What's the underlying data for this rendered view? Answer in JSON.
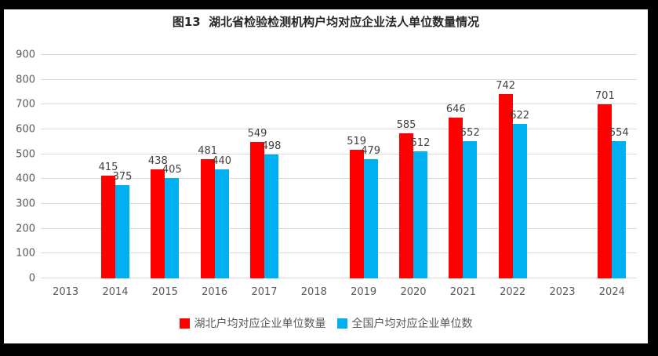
{
  "title": "图13  湖北省检验检测机构户均对应企业法人单位数量情况",
  "chart_data": {
    "type": "bar",
    "title": "图13  湖北省检验检测机构户均对应企业法人单位数量情况",
    "categories": [
      "2013",
      "2014",
      "2015",
      "2016",
      "2017",
      "2018",
      "2019",
      "2020",
      "2021",
      "2022",
      "2023",
      "2024"
    ],
    "series": [
      {
        "name": "湖北户均对应企业单位数量",
        "color": "#FF0000",
        "values": [
          null,
          415,
          438,
          481,
          549,
          null,
          519,
          585,
          646,
          742,
          null,
          701
        ]
      },
      {
        "name": "全国户均对应企业单位数",
        "color": "#00B0F0",
        "values": [
          null,
          375,
          405,
          440,
          498,
          null,
          479,
          512,
          552,
          622,
          null,
          554
        ]
      }
    ],
    "xlabel": "",
    "ylabel": "",
    "ylim": [
      0,
      900
    ],
    "ytick_step": 100,
    "grid": true,
    "data_labels": true,
    "legend_position": "bottom"
  },
  "colors": {
    "frame": "#000000",
    "panel_background": "#ffffff",
    "gridline": "#d9d9d9",
    "axis_text": "#595959",
    "data_label": "#404040",
    "title_text": "#262626"
  }
}
